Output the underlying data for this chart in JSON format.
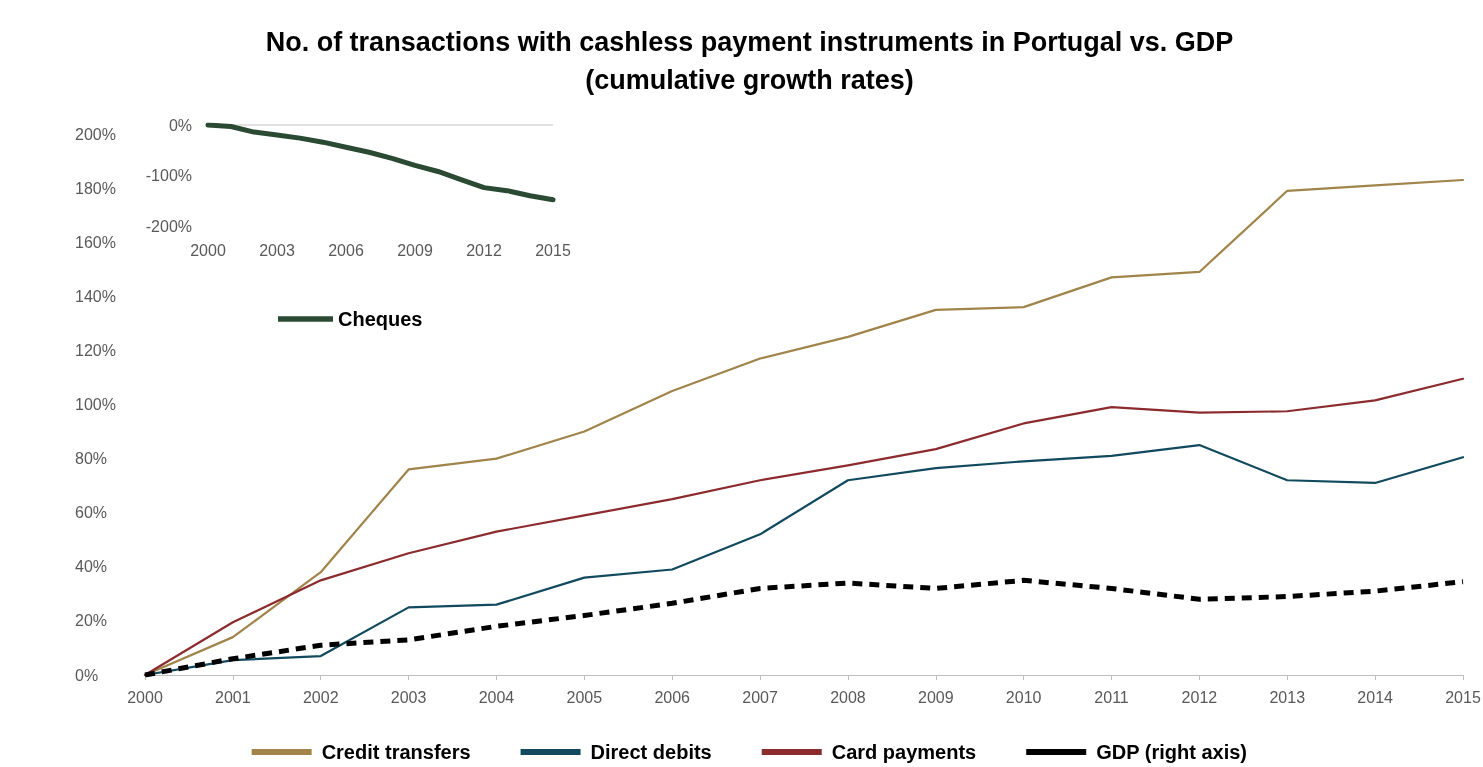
{
  "chart_data": [
    {
      "type": "line",
      "title": "No. of transactions with cashless payment instruments in Portugal vs. GDP\n(cumulative growth rates)",
      "categories": [
        "2000",
        "2001",
        "2002",
        "2003",
        "2004",
        "2005",
        "2006",
        "2007",
        "2008",
        "2009",
        "2010",
        "2011",
        "2012",
        "2013",
        "2014",
        "2015"
      ],
      "series": [
        {
          "name": "Credit transfers",
          "color": "#a0844a",
          "values": [
            0,
            14,
            38,
            76,
            80,
            90,
            105,
            117,
            125,
            135,
            136,
            147,
            149,
            179,
            181,
            183
          ]
        },
        {
          "name": "Direct debits",
          "color": "#114a5e",
          "values": [
            0,
            5.5,
            7,
            25,
            26,
            36,
            39,
            52,
            72,
            76.5,
            79,
            81,
            85,
            72,
            71,
            80.5
          ]
        },
        {
          "name": "Card payments",
          "color": "#8c2b2e",
          "values": [
            0,
            19.5,
            35,
            45,
            53,
            59,
            65,
            72,
            77.5,
            83.5,
            93,
            99,
            97,
            97.5,
            101.5,
            109.5
          ]
        },
        {
          "name": "GDP (right axis)",
          "color": "#000000",
          "line_style": "dashed",
          "values": [
            0,
            6,
            11,
            13,
            18,
            22,
            26.5,
            32,
            34,
            32,
            35,
            32,
            28,
            29,
            31,
            34.5
          ]
        }
      ],
      "ylim": [
        0,
        200
      ],
      "yticks": [
        {
          "value": 0,
          "label": "0%"
        },
        {
          "value": 20,
          "label": "20%"
        },
        {
          "value": 40,
          "label": "40%"
        },
        {
          "value": 60,
          "label": "60%"
        },
        {
          "value": 80,
          "label": "80%"
        },
        {
          "value": 100,
          "label": "100%"
        },
        {
          "value": 120,
          "label": "120%"
        },
        {
          "value": 140,
          "label": "140%"
        },
        {
          "value": 160,
          "label": "160%"
        },
        {
          "value": 180,
          "label": "180%"
        },
        {
          "value": 200,
          "label": "200%"
        }
      ],
      "grid": false,
      "legend": "bottom",
      "marker": "none",
      "line_style": "solid"
    },
    {
      "type": "line",
      "x": [
        2000,
        2001,
        2002,
        2003,
        2004,
        2005,
        2006,
        2007,
        2008,
        2009,
        2010,
        2011,
        2012,
        2013,
        2014,
        2015
      ],
      "series": [
        {
          "name": "Cheques",
          "color": "#2b4a33",
          "values": [
            0,
            -3,
            -14,
            -20,
            -26,
            -34,
            -44,
            -54,
            -66,
            -80,
            -92,
            -108,
            -124,
            -130,
            -140,
            -148
          ]
        }
      ],
      "xlim": [
        2000,
        2015
      ],
      "xticks": [
        2000,
        2003,
        2006,
        2009,
        2012,
        2015
      ],
      "ylim": [
        -200,
        0
      ],
      "yticks": [
        {
          "value": -200,
          "label": "-200%"
        },
        {
          "value": -100,
          "label": "-100%"
        },
        {
          "value": 0,
          "label": "0%"
        }
      ],
      "ref_lines": [
        {
          "axis": "y",
          "value": 0,
          "color": "#d9d9d9"
        }
      ],
      "grid": false,
      "legend": "bottom left",
      "marker": "none",
      "line_style": "solid"
    }
  ]
}
